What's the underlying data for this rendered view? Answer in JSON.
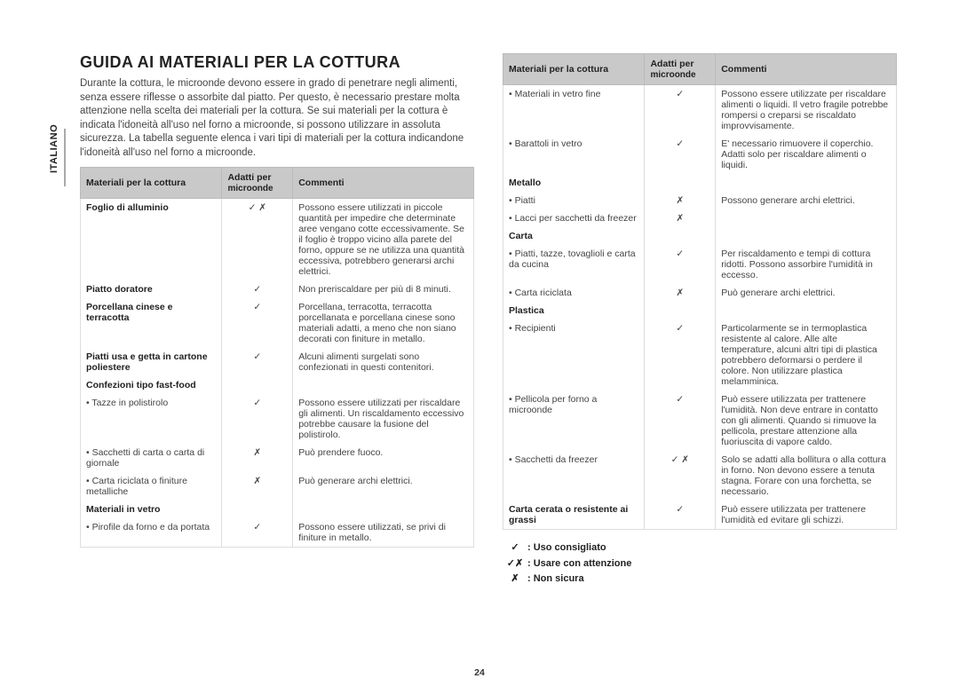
{
  "language_tab": "ITALIANO",
  "title": "GUIDA AI MATERIALI PER LA COTTURA",
  "intro": "Durante la cottura, le microonde devono essere in grado di penetrare negli alimenti, senza essere riflesse o assorbite dal piatto. Per questo, è necessario prestare molta attenzione nella scelta dei materiali per la cottura. Se sui materiali per la cottura è indicata l'idoneità all'uso nel forno a microonde, si possono utilizzare in assoluta sicurezza. La tabella seguente elenca i vari tipi di materiali per la cottura indicandone l'idoneità all'uso nel forno a microonde.",
  "headers": {
    "material": "Materiali per la cottura",
    "suitable": "Adatti per",
    "suitable_sub": "microonde",
    "comments": "Commenti"
  },
  "left_rows": [
    {
      "m": "Foglio di alluminio",
      "b": true,
      "s": "✓ ✗",
      "c": "Possono essere utilizzati in piccole quantità per impedire che determinate aree vengano cotte eccessivamente. Se il foglio è troppo vicino alla parete del forno, oppure se ne utilizza una quantità eccessiva, potrebbero generarsi archi elettrici."
    },
    {
      "m": "Piatto doratore",
      "b": true,
      "s": "✓",
      "c": "Non preriscaldare per più di 8 minuti."
    },
    {
      "m": "Porcellana cinese e terracotta",
      "b": true,
      "s": "✓",
      "c": "Porcellana, terracotta, terracotta porcellanata e porcellana cinese sono materiali adatti, a meno che non siano decorati con finiture in metallo."
    },
    {
      "m": "Piatti usa e getta in cartone poliestere",
      "b": true,
      "s": "✓",
      "c": "Alcuni alimenti surgelati sono confezionati in questi contenitori."
    },
    {
      "m": "Confezioni tipo fast-food",
      "b": true,
      "sub": true
    },
    {
      "m": "Tazze in polistirolo",
      "bul": true,
      "s": "✓",
      "c": "Possono essere utilizzati per riscaldare gli alimenti. Un riscaldamento eccessivo potrebbe causare la fusione del polistirolo."
    },
    {
      "m": "Sacchetti di carta o carta di giornale",
      "bul": true,
      "s": "✗",
      "c": "Può prendere fuoco."
    },
    {
      "m": "Carta riciclata o finiture metalliche",
      "bul": true,
      "s": "✗",
      "c": "Può generare archi elettrici."
    },
    {
      "m": "Materiali in vetro",
      "b": true,
      "sub": true
    },
    {
      "m": "Pirofile da forno e da portata",
      "bul": true,
      "s": "✓",
      "c": "Possono essere utilizzati, se privi di finiture in metallo."
    }
  ],
  "right_rows": [
    {
      "m": "Materiali in vetro fine",
      "bul": true,
      "s": "✓",
      "c": "Possono essere utilizzate per riscaldare alimenti o liquidi. Il vetro fragile potrebbe rompersi o creparsi se riscaldato improvvisamente."
    },
    {
      "m": "Barattoli in vetro",
      "bul": true,
      "s": "✓",
      "c": "E' necessario rimuovere il coperchio. Adatti solo per riscaldare alimenti o liquidi."
    },
    {
      "m": "Metallo",
      "b": true,
      "sub": true
    },
    {
      "m": "Piatti",
      "bul": true,
      "s": "✗",
      "c": "Possono generare archi elettrici."
    },
    {
      "m": "Lacci per sacchetti da freezer",
      "bul": true,
      "s": "✗",
      "c": ""
    },
    {
      "m": "Carta",
      "b": true,
      "sub": true
    },
    {
      "m": "Piatti, tazze, tovaglioli e carta da cucina",
      "bul": true,
      "s": "✓",
      "c": "Per riscaldamento e tempi di cottura ridotti. Possono assorbire l'umidità in eccesso."
    },
    {
      "m": "Carta riciclata",
      "bul": true,
      "s": "✗",
      "c": "Può generare archi elettrici."
    },
    {
      "m": "Plastica",
      "b": true,
      "sub": true
    },
    {
      "m": "Recipienti",
      "bul": true,
      "s": "✓",
      "c": "Particolarmente se in termoplastica resistente al calore. Alle alte temperature, alcuni altri tipi di plastica potrebbero deformarsi o perdere il colore. Non utilizzare plastica melamminica."
    },
    {
      "m": "Pellicola per forno a microonde",
      "bul": true,
      "s": "✓",
      "c": "Può essere utilizzata per trattenere l'umidità. Non deve entrare in contatto con gli alimenti. Quando si rimuove la pellicola, prestare attenzione alla fuoriuscita di vapore caldo."
    },
    {
      "m": "Sacchetti da freezer",
      "bul": true,
      "s": "✓ ✗",
      "c": "Solo se adatti alla bollitura o alla cottura in forno. Non devono essere a tenuta stagna. Forare con una forchetta, se necessario."
    },
    {
      "m": "Carta cerata o resistente ai grassi",
      "b": true,
      "s": "✓",
      "c": "Può essere utilizzata per trattenere l'umidità ed evitare gli schizzi."
    }
  ],
  "legend": {
    "ok": {
      "sym": "✓",
      "txt": ": Uso consigliato"
    },
    "care": {
      "sym": "✓✗",
      "txt": ": Usare con attenzione"
    },
    "no": {
      "sym": "✗",
      "txt": ": Non sicura"
    }
  },
  "page_number": "24"
}
